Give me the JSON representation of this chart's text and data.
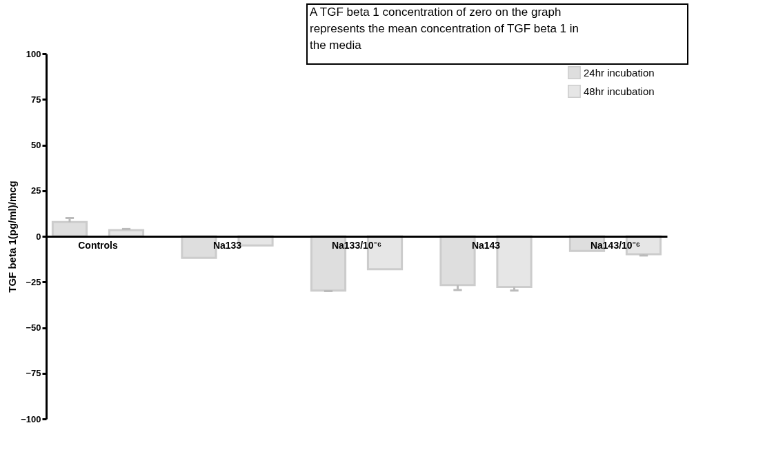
{
  "chart_data": {
    "type": "bar",
    "ylabel": "TGF beta 1(pg/ml)/mcg",
    "annotations": [
      "A TGF beta 1 concentration of zero on the graph represents the mean concentration of TGF beta 1 in the media"
    ],
    "categories": [
      "Controls",
      "Na133",
      "Na133/10⁻⁶",
      "Na143",
      "Na143/10⁻⁶"
    ],
    "series": [
      {
        "name": "24hr incubation",
        "color": "#dedede",
        "values": [
          7.8,
          -11.8,
          -29.7,
          -26.7,
          -8
        ],
        "errors": [
          [
            7.8,
            10
          ],
          null,
          [
            -30,
            -29.7
          ],
          [
            -29.4,
            -26.7
          ],
          null
        ]
      },
      {
        "name": "48hr incubation",
        "color": "#e6e6e6",
        "values": [
          3.4,
          -5,
          -18,
          -27.7,
          -9.8
        ],
        "errors": [
          [
            3.4,
            4
          ],
          null,
          null,
          [
            -29.7,
            -27.7
          ],
          [
            -10.5,
            -9.8
          ]
        ]
      }
    ],
    "ylim": [
      -100,
      100
    ],
    "yticks": [
      -100,
      -75,
      -50,
      -25,
      0,
      25,
      50,
      75,
      100
    ],
    "grid": false,
    "legend": "top right"
  }
}
